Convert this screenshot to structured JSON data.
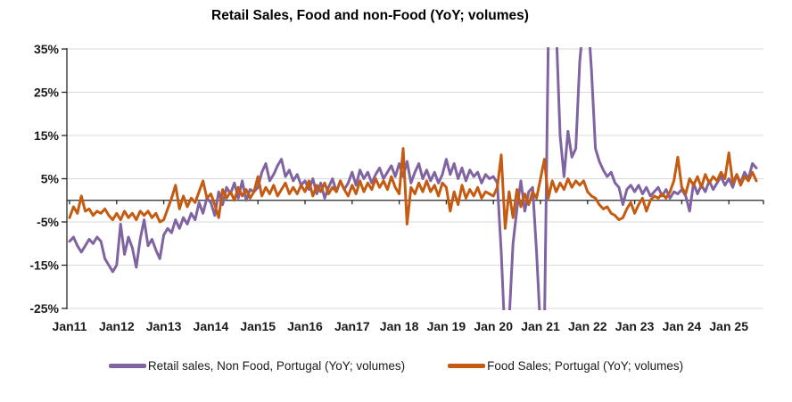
{
  "page": {
    "background": "#FFFFFF"
  },
  "chart_data": {
    "type": "line",
    "title": "Retail Sales, Food and non-Food (YoY; volumes)",
    "xlabel": "",
    "ylabel": "",
    "unit": "percent, year-over-year",
    "frequency": "monthly",
    "x_start": "Jan 2011",
    "x_end": "Aug 2025",
    "ylim": [
      -25,
      35
    ],
    "grid": true,
    "legend_position": "bottom",
    "clip_note": "values beyond ylim are clipped at plot edges",
    "y_ticks": [
      35,
      25,
      15,
      5,
      -5,
      -15,
      -25
    ],
    "y_tick_labels": [
      "35%",
      "25%",
      "15%",
      "5%",
      "-5%",
      "-15%",
      "-25%"
    ],
    "x_tick_labels": [
      "Jan11",
      "Jan12",
      "Jan13",
      "Jan14",
      "Jan15",
      "Jan16",
      "Jan17",
      "Jan 18",
      "Jan 19",
      "Jan 20",
      "Jan 21",
      "Jan 22",
      "Jan 23",
      "Jan 24",
      "Jan 25"
    ],
    "x_tick_month_indices": [
      0,
      12,
      24,
      36,
      48,
      60,
      72,
      84,
      96,
      108,
      120,
      132,
      144,
      156,
      168
    ],
    "zero_line": true,
    "colors": {
      "grid": "#D9D9D9",
      "axis": "#262626",
      "text": "#1a1a1a"
    },
    "series": [
      {
        "name": "Retail sales, Non Food, Portugal (YoY; volumes)",
        "color": "#8064A2",
        "values": [
          -9.5,
          -8.5,
          -10.5,
          -12,
          -10.5,
          -9,
          -10,
          -8.5,
          -9.5,
          -13.5,
          -15,
          -16.5,
          -15,
          -5.5,
          -12.5,
          -8.5,
          -11,
          -15.5,
          -9,
          -4.5,
          -10.5,
          -9,
          -11.5,
          -13.5,
          -8,
          -6.5,
          -7.5,
          -4.5,
          -6.5,
          -4,
          -5.5,
          -3,
          -4.5,
          -0.5,
          -3,
          0.5,
          -0.5,
          -3.5,
          2,
          -1,
          3,
          1.5,
          4,
          0.5,
          4.5,
          0,
          2.5,
          2,
          3,
          6.5,
          8.5,
          4.5,
          6,
          8,
          9.5,
          5.5,
          7,
          4.5,
          6,
          3.5,
          4.5,
          2.5,
          5,
          1.5,
          4,
          0.5,
          3,
          5,
          2,
          4.5,
          2.5,
          4,
          6.5,
          3.5,
          7,
          5,
          6.5,
          4,
          6,
          7.5,
          5,
          6.5,
          8,
          5.5,
          8.5,
          5.5,
          9,
          4,
          6.5,
          8.5,
          5,
          7,
          4.5,
          6.5,
          4,
          6,
          9.5,
          6,
          8.5,
          5,
          7.5,
          4.5,
          7,
          5.5,
          6.5,
          4,
          6,
          5,
          5.5,
          4,
          -12,
          -33,
          -28,
          -10,
          -2,
          4.5,
          -2.5,
          2,
          3,
          -12,
          -30,
          -30,
          38,
          42,
          40,
          15,
          5.5,
          16,
          10,
          12,
          32,
          42,
          44,
          30,
          12,
          9,
          7,
          5.5,
          6.5,
          4,
          3,
          -1,
          2.5,
          3.5,
          2,
          3.5,
          1.5,
          3,
          1,
          2,
          3,
          1,
          2.5,
          0.5,
          2,
          1.5,
          2.5,
          1,
          -2.5,
          4,
          1.5,
          3.5,
          2,
          4.5,
          2.5,
          4,
          5.5,
          3.5,
          5,
          3,
          6,
          4,
          6.5,
          5,
          8.5,
          7.5
        ]
      },
      {
        "name": "Food Sales; Portugal (YoY; volumes)",
        "color": "#C55A11",
        "values": [
          -4,
          -1.5,
          -3,
          1,
          -2.5,
          -2,
          -3.5,
          -2.5,
          -3,
          -2,
          -3.5,
          -4.5,
          -3,
          -4.5,
          -2.5,
          -4,
          -3,
          -4.5,
          -2.5,
          -3.5,
          -2.5,
          -4,
          -3,
          -5,
          -4.5,
          -2,
          0.5,
          3.5,
          -2,
          1,
          -1.5,
          0.5,
          -0.5,
          2,
          4.5,
          0.5,
          1.5,
          -1,
          -4,
          2.5,
          0.5,
          2,
          0,
          3,
          1,
          2.5,
          0.5,
          2,
          5.5,
          1,
          3,
          1.5,
          3.5,
          1,
          2.5,
          4,
          1.5,
          3,
          1.5,
          3.5,
          2,
          4.5,
          1,
          3.5,
          2,
          4,
          1.5,
          3,
          2,
          4.5,
          2.5,
          1,
          3.5,
          1.5,
          4.5,
          2,
          4,
          2.5,
          5,
          3,
          4.5,
          2.5,
          5.5,
          3,
          1.5,
          12,
          -5.5,
          3,
          1.5,
          4,
          2,
          4.5,
          2,
          3.5,
          1,
          4,
          3,
          -2.5,
          2,
          -1,
          3.5,
          0.5,
          2.5,
          1,
          3,
          0.5,
          2,
          1.5,
          1,
          3,
          10.5,
          -6.5,
          2,
          -4,
          2.5,
          -1.5,
          1.5,
          -1,
          2,
          0.5,
          5,
          9.5,
          0.5,
          4.5,
          2,
          4,
          2.5,
          5,
          3,
          4.5,
          3.5,
          4.5,
          2,
          1,
          0.5,
          -1,
          -2,
          -1.5,
          -3,
          -3.5,
          -4.5,
          -4,
          -2,
          -0.5,
          -3,
          -1,
          0.5,
          -2.5,
          0,
          1,
          0.5,
          1.5,
          0.5,
          2,
          4.5,
          10,
          3,
          1.5,
          5,
          3.5,
          5.5,
          3,
          6,
          4,
          5.5,
          4.5,
          6.5,
          5,
          11,
          4,
          6,
          3.5,
          5.5,
          4.5,
          6.5,
          4.5
        ]
      }
    ]
  }
}
